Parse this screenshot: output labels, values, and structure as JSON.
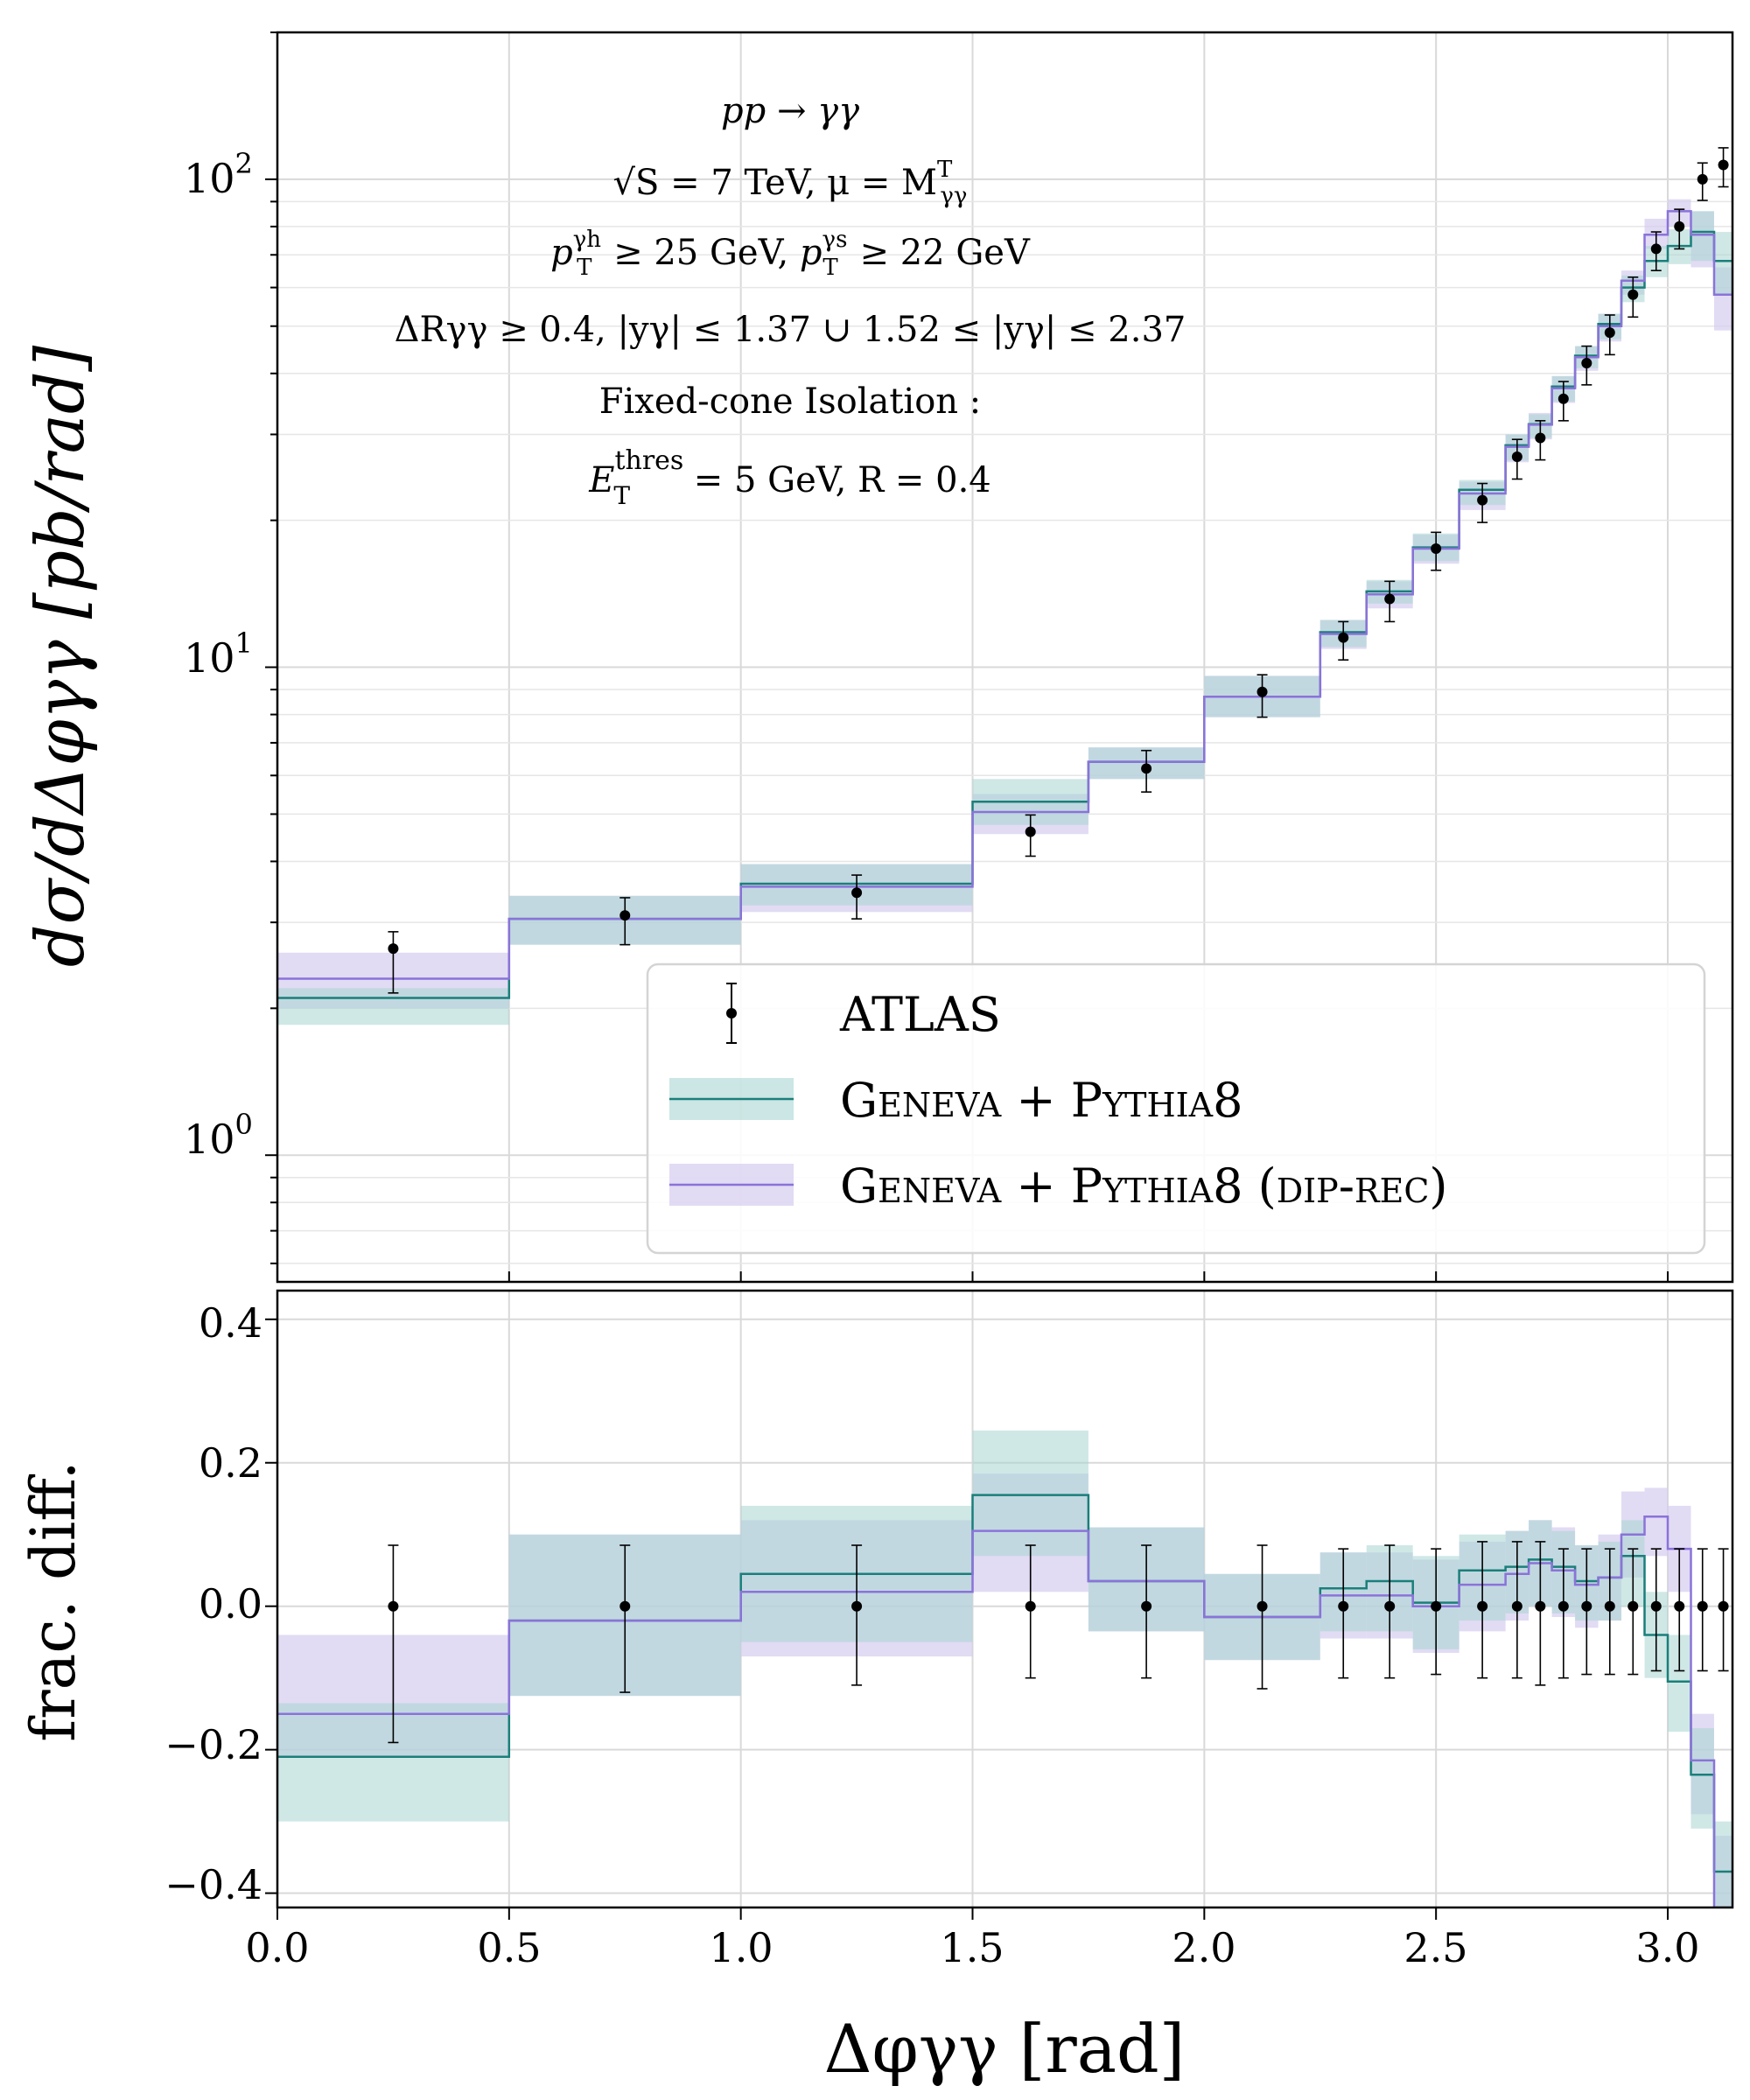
{
  "colors": {
    "geneva": "#1a7f7a",
    "geneva_band": "#a8d5d2",
    "diprec": "#8a73d9",
    "diprec_band": "#d6ccf0",
    "data": "#000000"
  },
  "annotation": {
    "line1": "pp → γγ",
    "line2": "√S = 7 TeV,  μ = M",
    "line2_sup": "T",
    "line2_sub": "γγ",
    "line3a": "p",
    "line3a_sup": "γh",
    "line3a_sub": "T",
    "line3a_rest": " ≥ 25 GeV,   ",
    "line3b": "p",
    "line3b_sup": "γs",
    "line3b_sub": "T",
    "line3b_rest": " ≥ 22 GeV",
    "line4": "ΔRγγ ≥ 0.4,   |yγ| ≤ 1.37  ∪  1.52 ≤ |yγ| ≤ 2.37",
    "line5": "Fixed-cone Isolation :",
    "line6": "E",
    "line6_sup": "thres",
    "line6_sub": "T",
    "line6_rest": " = 5 GeV,   R = 0.4"
  },
  "legend": {
    "atlas": "ATLAS",
    "geneva": "Geneva + Pythia8",
    "diprec": "Geneva + Pythia8 (dip-rec)"
  },
  "axes": {
    "top_ylabel": "dσ/dΔφγγ [pb/rad]",
    "bottom_ylabel": "frac. diff.",
    "xlabel": "Δφγγ [rad]",
    "x_ticks": [
      "0.0",
      "0.5",
      "1.0",
      "1.5",
      "2.0",
      "2.5",
      "3.0"
    ],
    "top_ticks": [
      {
        "base": "10",
        "exp": "0"
      },
      {
        "base": "10",
        "exp": "1"
      },
      {
        "base": "10",
        "exp": "2"
      }
    ],
    "bottom_ticks": [
      "0.4",
      "0.2",
      "0.0",
      "−0.2",
      "−0.4"
    ]
  },
  "chart_data": [
    {
      "type": "line",
      "title": "",
      "xlabel": "Δφγγ [rad]",
      "ylabel": "dσ/dΔφγγ [pb/rad]",
      "yscale": "log",
      "xlim": [
        0,
        3.1416
      ],
      "ylim": [
        0.55,
        200
      ],
      "grid": true,
      "legend_position": "lower-right",
      "bin_edges": [
        0,
        0.5,
        1.0,
        1.5,
        1.75,
        2.0,
        2.25,
        2.35,
        2.45,
        2.55,
        2.65,
        2.7,
        2.75,
        2.8,
        2.85,
        2.9,
        2.95,
        3.0,
        3.05,
        3.1,
        3.1416
      ],
      "series": [
        {
          "name": "ATLAS",
          "x": [
            0.25,
            0.75,
            1.25,
            1.625,
            1.875,
            2.125,
            2.3,
            2.4,
            2.5,
            2.6,
            2.675,
            2.725,
            2.775,
            2.825,
            2.875,
            2.925,
            2.975,
            3.025,
            3.075,
            3.12
          ],
          "values": [
            2.65,
            3.1,
            3.45,
            4.6,
            6.2,
            8.9,
            11.5,
            13.8,
            17.5,
            22.0,
            27.0,
            29.5,
            35.5,
            42.0,
            48.5,
            58.0,
            72.0,
            80.0,
            100.0,
            107.0
          ],
          "err_low": [
            0.5,
            0.4,
            0.4,
            0.5,
            0.65,
            1.0,
            1.15,
            1.4,
            1.7,
            2.2,
            2.7,
            2.9,
            3.5,
            4.1,
            4.8,
            5.8,
            7.0,
            8.0,
            9.5,
            10.5
          ],
          "err_high": [
            0.22,
            0.27,
            0.3,
            0.38,
            0.55,
            0.75,
            0.9,
            1.2,
            1.4,
            1.8,
            2.3,
            2.5,
            3.0,
            3.5,
            4.2,
            5.0,
            6.0,
            6.8,
            8.0,
            9.0
          ]
        },
        {
          "name": "Geneva + Pythia8",
          "values": [
            2.1,
            3.05,
            3.6,
            5.3,
            6.4,
            8.7,
            11.8,
            14.3,
            17.6,
            23.1,
            28.5,
            31.5,
            37.6,
            43.5,
            50.5,
            60.0,
            68.0,
            73.0,
            78.0,
            68.0
          ],
          "band_low": [
            1.85,
            2.7,
            3.25,
            4.75,
            5.9,
            7.9,
            11.0,
            13.5,
            16.5,
            21.5,
            26.5,
            29.5,
            35.0,
            41.0,
            47.0,
            56.0,
            63.0,
            67.0,
            68.0,
            58.0
          ],
          "band_high": [
            2.2,
            3.4,
            3.95,
            5.9,
            6.85,
            9.6,
            12.5,
            15.1,
            18.8,
            24.2,
            30.0,
            33.0,
            39.5,
            45.5,
            53.0,
            63.5,
            73.0,
            79.0,
            86.0,
            78.0
          ]
        },
        {
          "name": "Geneva + Pythia8 (dip-rec)",
          "values": [
            2.3,
            3.05,
            3.55,
            5.05,
            6.4,
            8.7,
            11.7,
            14.1,
            17.5,
            22.7,
            28.3,
            31.4,
            37.3,
            43.2,
            50.0,
            62.0,
            77.0,
            86.0,
            77.0,
            58.0
          ],
          "band_low": [
            2.0,
            2.7,
            3.15,
            4.55,
            5.9,
            7.9,
            10.9,
            13.2,
            16.3,
            21.0,
            26.3,
            29.3,
            34.8,
            40.5,
            46.5,
            58.0,
            72.0,
            80.0,
            66.0,
            49.0
          ],
          "band_high": [
            2.6,
            3.4,
            3.95,
            5.5,
            6.85,
            9.6,
            12.5,
            15.0,
            18.7,
            24.0,
            30.0,
            33.2,
            39.5,
            45.5,
            53.0,
            65.0,
            83.0,
            91.0,
            86.0,
            66.0
          ]
        }
      ]
    },
    {
      "type": "line",
      "title": "",
      "xlabel": "Δφγγ [rad]",
      "ylabel": "frac. diff.",
      "xlim": [
        0,
        3.1416
      ],
      "ylim": [
        -0.42,
        0.44
      ],
      "grid": true,
      "bin_edges": [
        0,
        0.5,
        1.0,
        1.5,
        1.75,
        2.0,
        2.25,
        2.35,
        2.45,
        2.55,
        2.65,
        2.7,
        2.75,
        2.8,
        2.85,
        2.9,
        2.95,
        3.0,
        3.05,
        3.1,
        3.1416
      ],
      "series": [
        {
          "name": "ATLAS",
          "x": [
            0.25,
            0.75,
            1.25,
            1.625,
            1.875,
            2.125,
            2.3,
            2.4,
            2.5,
            2.6,
            2.675,
            2.725,
            2.775,
            2.825,
            2.875,
            2.925,
            2.975,
            3.025,
            3.075,
            3.12
          ],
          "values": [
            0,
            0,
            0,
            0,
            0,
            0,
            0,
            0,
            0,
            0,
            0,
            0,
            0,
            0,
            0,
            0,
            0,
            0,
            0,
            0
          ],
          "err_low": [
            0.19,
            0.12,
            0.11,
            0.1,
            0.1,
            0.115,
            0.1,
            0.1,
            0.095,
            0.1,
            0.1,
            0.11,
            0.1,
            0.095,
            0.095,
            0.095,
            0.09,
            0.09,
            0.09,
            0.09
          ],
          "err_high": [
            0.085,
            0.085,
            0.085,
            0.085,
            0.085,
            0.085,
            0.08,
            0.085,
            0.08,
            0.09,
            0.09,
            0.09,
            0.08,
            0.08,
            0.08,
            0.08,
            0.08,
            0.08,
            0.08,
            0.08
          ]
        },
        {
          "name": "Geneva + Pythia8",
          "values": [
            -0.21,
            -0.02,
            0.045,
            0.155,
            0.035,
            -0.015,
            0.025,
            0.035,
            0.005,
            0.05,
            0.055,
            0.065,
            0.055,
            0.035,
            0.04,
            0.07,
            -0.04,
            -0.105,
            -0.235,
            -0.37
          ],
          "band_low": [
            -0.3,
            -0.125,
            -0.05,
            0.07,
            -0.035,
            -0.075,
            -0.035,
            -0.035,
            -0.06,
            -0.02,
            -0.01,
            0.0,
            -0.01,
            -0.02,
            -0.02,
            0.0,
            -0.1,
            -0.175,
            -0.31,
            -0.42
          ],
          "band_high": [
            -0.135,
            0.1,
            0.14,
            0.245,
            0.11,
            0.045,
            0.075,
            0.085,
            0.07,
            0.1,
            0.105,
            0.12,
            0.105,
            0.085,
            0.09,
            0.12,
            0.02,
            -0.04,
            -0.17,
            -0.3
          ]
        },
        {
          "name": "Geneva + Pythia8 (dip-rec)",
          "values": [
            -0.15,
            -0.02,
            0.02,
            0.105,
            0.035,
            -0.015,
            0.015,
            0.015,
            0.0,
            0.03,
            0.045,
            0.06,
            0.05,
            0.03,
            0.04,
            0.1,
            0.125,
            0.08,
            -0.215,
            -0.42
          ],
          "band_low": [
            -0.21,
            -0.125,
            -0.07,
            0.02,
            -0.035,
            -0.075,
            -0.045,
            -0.045,
            -0.065,
            -0.035,
            -0.02,
            0.0,
            -0.015,
            -0.03,
            -0.02,
            0.04,
            0.07,
            0.02,
            -0.29,
            -0.42
          ],
          "band_high": [
            -0.04,
            0.1,
            0.12,
            0.185,
            0.11,
            0.045,
            0.075,
            0.075,
            0.065,
            0.09,
            0.105,
            0.12,
            0.11,
            0.085,
            0.1,
            0.16,
            0.165,
            0.14,
            -0.15,
            -0.32
          ]
        }
      ]
    }
  ]
}
